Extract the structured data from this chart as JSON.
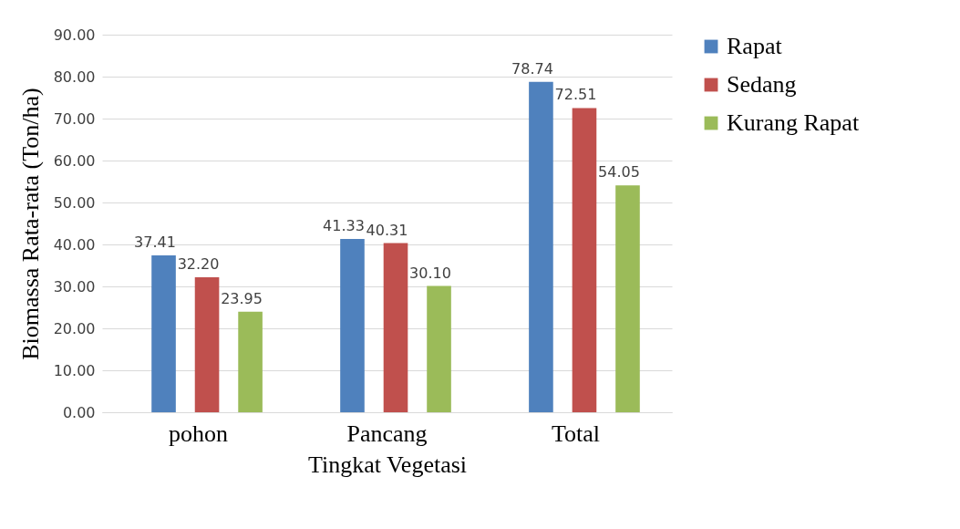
{
  "chart_data": {
    "type": "bar",
    "xlabel": "Tingkat Vegetasi",
    "ylabel": "Biomassa Rata-rata (Ton/ha)",
    "categories": [
      "pohon",
      "Pancang",
      "Total"
    ],
    "series": [
      {
        "name": "Rapat",
        "color": "#4f81bd",
        "values": [
          37.41,
          41.33,
          78.74
        ],
        "value_labels": [
          "37.41",
          "41.33",
          "78.74"
        ]
      },
      {
        "name": "Sedang",
        "color": "#c0504d",
        "values": [
          32.2,
          40.31,
          72.51
        ],
        "value_labels": [
          "32.20",
          "40.31",
          "72.51"
        ]
      },
      {
        "name": "Kurang Rapat",
        "color": "#9bbb59",
        "values": [
          23.95,
          30.1,
          54.05
        ],
        "value_labels": [
          "23.95",
          "30.10",
          "54.05"
        ]
      }
    ],
    "ylim": [
      0,
      90
    ],
    "yticks": [
      {
        "value": 0,
        "label": "0.00"
      },
      {
        "value": 10,
        "label": "10.00"
      },
      {
        "value": 20,
        "label": "20.00"
      },
      {
        "value": 30,
        "label": "30.00"
      },
      {
        "value": 40,
        "label": "40.00"
      },
      {
        "value": 50,
        "label": "50.00"
      },
      {
        "value": 60,
        "label": "60.00"
      },
      {
        "value": 70,
        "label": "70.00"
      },
      {
        "value": 80,
        "label": "80.00"
      },
      {
        "value": 90,
        "label": "90.00"
      }
    ],
    "grid": "y",
    "legend": "right"
  }
}
